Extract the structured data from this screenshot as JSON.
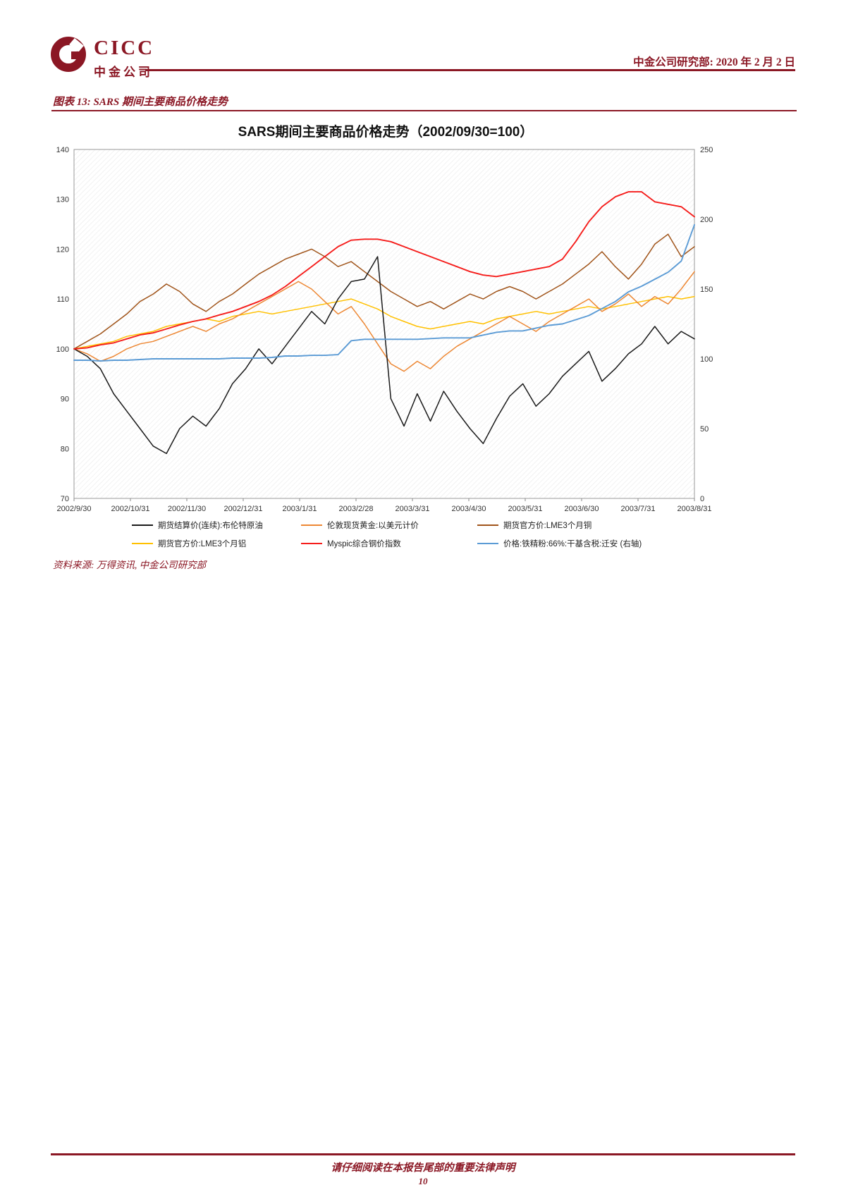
{
  "page": {
    "accent_color": "#8B1724",
    "background": "#ffffff"
  },
  "header": {
    "logo_text": "CICC",
    "logo_subtext": "中金公司",
    "right_text": "中金公司研究部: 2020 年 2 月 2 日"
  },
  "figure": {
    "caption": "图表 13: SARS 期间主要商品价格走势",
    "source": "资料来源: 万得资讯, 中金公司研究部"
  },
  "chart_data": {
    "type": "line",
    "title": "SARS期间主要商品价格走势（2002/09/30=100）",
    "x_tick_labels": [
      "2002/9/30",
      "2002/10/31",
      "2002/11/30",
      "2002/12/31",
      "2003/1/31",
      "2003/2/28",
      "2003/3/31",
      "2003/4/30",
      "2003/5/31",
      "2003/6/30",
      "2003/7/31",
      "2003/8/31"
    ],
    "y_left": {
      "min": 70,
      "max": 140,
      "ticks": [
        70,
        80,
        90,
        100,
        110,
        120,
        130,
        140
      ]
    },
    "y_right": {
      "min": 0,
      "max": 250,
      "ticks": [
        0,
        50,
        100,
        150,
        200,
        250
      ]
    },
    "legend_position": "bottom",
    "grid": false,
    "series": [
      {
        "name": "期货结算价(连续):布伦特原油",
        "color": "#1a1a1a",
        "axis": "left",
        "values": [
          100,
          98.5,
          96,
          91,
          87.5,
          84,
          80.5,
          79,
          84,
          86.5,
          84.5,
          88,
          93,
          96,
          100,
          97,
          100.5,
          104,
          107.5,
          105,
          110,
          113.5,
          114,
          118.5,
          90,
          84.5,
          91,
          85.5,
          91.5,
          87.5,
          84,
          81,
          86,
          90.5,
          93,
          88.5,
          91,
          94.5,
          97,
          99.5,
          93.5,
          96,
          99,
          101,
          104.5,
          101,
          103.5,
          102
        ]
      },
      {
        "name": "伦敦现货黄金:以美元计价",
        "color": "#ED8733",
        "axis": "left",
        "values": [
          100,
          99,
          97.5,
          98.5,
          100,
          101,
          101.5,
          102.5,
          103.5,
          104.5,
          103.5,
          105,
          106,
          107.5,
          109,
          110.5,
          112,
          113.5,
          112,
          109.5,
          107,
          108.5,
          105,
          101,
          97,
          95.5,
          97.5,
          96,
          98.5,
          100.5,
          102,
          103.5,
          105,
          106.5,
          105,
          103.5,
          105.5,
          107,
          108.5,
          110,
          107.5,
          109,
          111,
          108.5,
          110.5,
          109,
          112,
          115.5
        ]
      },
      {
        "name": "期货官方价:LME3个月铜",
        "color": "#A0541A",
        "axis": "left",
        "values": [
          100,
          101.5,
          103,
          105,
          107,
          109.5,
          111,
          113,
          111.5,
          109,
          107.5,
          109.5,
          111,
          113,
          115,
          116.5,
          118,
          119,
          120,
          118.5,
          116.5,
          117.5,
          115.5,
          113.5,
          111.5,
          110,
          108.5,
          109.5,
          108,
          109.5,
          111,
          110,
          111.5,
          112.5,
          111.5,
          110,
          111.5,
          113,
          115,
          117,
          119.5,
          116.5,
          114,
          117,
          121,
          123,
          118.5,
          120.5
        ]
      },
      {
        "name": "期货官方价:LME3个月铝",
        "color": "#FFC000",
        "axis": "left",
        "values": [
          100,
          100.5,
          101,
          101.5,
          102.5,
          103,
          103.5,
          104.5,
          105,
          105.5,
          106,
          105.5,
          106.5,
          107,
          107.5,
          107,
          107.5,
          108,
          108.5,
          109,
          109.5,
          110,
          109,
          108,
          106.5,
          105.5,
          104.5,
          104,
          104.5,
          105,
          105.5,
          105,
          106,
          106.5,
          107,
          107.5,
          107,
          107.5,
          108,
          108.5,
          108,
          108.5,
          109,
          109.5,
          110,
          110.5,
          110,
          110.5
        ]
      },
      {
        "name": "Myspic综合钢价指数",
        "color": "#F51D1B",
        "axis": "left",
        "values": [
          100,
          100.2,
          100.8,
          101.2,
          102,
          102.8,
          103.2,
          104,
          104.8,
          105.5,
          106,
          106.8,
          107.5,
          108.5,
          109.5,
          110.8,
          112.5,
          114.5,
          116.5,
          118.5,
          120.5,
          121.8,
          122,
          122,
          121.5,
          120.5,
          119.5,
          118.5,
          117.5,
          116.5,
          115.5,
          114.8,
          114.5,
          115,
          115.5,
          116,
          116.5,
          118,
          121.5,
          125.5,
          128.5,
          130.5,
          131.5,
          131.5,
          129.5,
          129,
          128.5,
          126.5
        ]
      },
      {
        "name": "价格:铁精粉:66%:干基含税:迁安 (右轴)",
        "color": "#5B9BD5",
        "axis": "right",
        "values": [
          99,
          99,
          98.5,
          99,
          99,
          99.5,
          100,
          100,
          100,
          100,
          100,
          100,
          100.5,
          100.5,
          100.5,
          101,
          102,
          102,
          102.5,
          102.5,
          103,
          113,
          114,
          114,
          114,
          114,
          114,
          114.5,
          115,
          115,
          115,
          117,
          119,
          120,
          120,
          122,
          124,
          125,
          128,
          131,
          136,
          141,
          148,
          152,
          157,
          162,
          170,
          196
        ]
      }
    ]
  },
  "footer": {
    "disclaimer": "请仔细阅读在本报告尾部的重要法律声明",
    "page_number": "10"
  }
}
